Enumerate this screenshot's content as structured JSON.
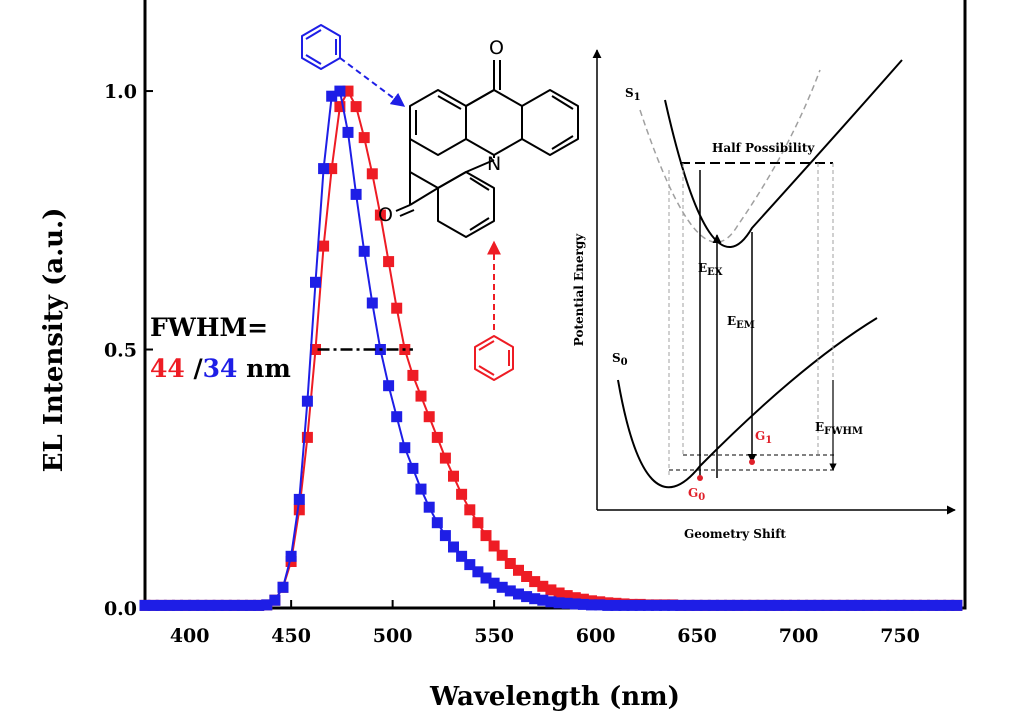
{
  "chart_data": {
    "type": "scatter",
    "title": "",
    "xlabel": "Wavelength (nm)",
    "ylabel": "EL Intensity (a.u.)",
    "xlim": [
      378,
      782
    ],
    "ylim": [
      0,
      1.18
    ],
    "xticks": [
      400,
      450,
      500,
      550,
      600,
      650,
      700,
      750
    ],
    "yticks": [
      0.0,
      0.5,
      1.0
    ],
    "xtick_labels": [
      "400",
      "450",
      "500",
      "550",
      "600",
      "650",
      "700",
      "750"
    ],
    "ytick_labels": [
      "0.0",
      "0.5",
      "1.0"
    ],
    "grid": false,
    "series": [
      {
        "color": "#ee1c24",
        "marker": "square",
        "x": [
          378,
          382,
          386,
          390,
          394,
          398,
          402,
          406,
          410,
          414,
          418,
          422,
          426,
          430,
          434,
          438,
          442,
          446,
          450,
          454,
          458,
          462,
          466,
          470,
          474,
          478,
          482,
          486,
          490,
          494,
          498,
          502,
          506,
          510,
          514,
          518,
          522,
          526,
          530,
          534,
          538,
          542,
          546,
          550,
          554,
          558,
          562,
          566,
          570,
          574,
          578,
          582,
          586,
          590,
          594,
          598,
          602,
          606,
          610,
          614,
          618,
          622,
          626,
          630,
          634,
          638,
          642,
          646,
          650,
          654,
          658,
          662,
          666,
          670,
          674,
          678,
          682,
          686,
          690,
          694,
          698,
          702,
          706,
          710,
          714,
          718,
          722,
          726,
          730,
          734,
          738,
          742,
          746,
          750,
          754,
          758,
          762,
          766,
          770,
          774,
          778
        ],
        "y": [
          0.005,
          0.005,
          0.005,
          0.005,
          0.005,
          0.005,
          0.005,
          0.005,
          0.005,
          0.005,
          0.005,
          0.005,
          0.005,
          0.005,
          0.005,
          0.006,
          0.015,
          0.04,
          0.09,
          0.19,
          0.33,
          0.5,
          0.7,
          0.85,
          0.97,
          1.0,
          0.97,
          0.91,
          0.84,
          0.76,
          0.67,
          0.58,
          0.5,
          0.45,
          0.41,
          0.37,
          0.33,
          0.29,
          0.255,
          0.22,
          0.19,
          0.165,
          0.14,
          0.12,
          0.102,
          0.086,
          0.073,
          0.061,
          0.051,
          0.042,
          0.035,
          0.029,
          0.024,
          0.02,
          0.017,
          0.014,
          0.012,
          0.01,
          0.009,
          0.008,
          0.007,
          0.007,
          0.006,
          0.006,
          0.006,
          0.006,
          0.005,
          0.005,
          0.005,
          0.005,
          0.005,
          0.005,
          0.005,
          0.005,
          0.005,
          0.005,
          0.005,
          0.005,
          0.005,
          0.005,
          0.005,
          0.005,
          0.005,
          0.005,
          0.005,
          0.005,
          0.005,
          0.005,
          0.005,
          0.005,
          0.005,
          0.005,
          0.005,
          0.005,
          0.005,
          0.005,
          0.005,
          0.005,
          0.005,
          0.005,
          0.005
        ]
      },
      {
        "color": "#1e1ee6",
        "marker": "square",
        "x": [
          378,
          382,
          386,
          390,
          394,
          398,
          402,
          406,
          410,
          414,
          418,
          422,
          426,
          430,
          434,
          438,
          442,
          446,
          450,
          454,
          458,
          462,
          466,
          470,
          474,
          478,
          482,
          486,
          490,
          494,
          498,
          502,
          506,
          510,
          514,
          518,
          522,
          526,
          530,
          534,
          538,
          542,
          546,
          550,
          554,
          558,
          562,
          566,
          570,
          574,
          578,
          582,
          586,
          590,
          594,
          598,
          602,
          606,
          610,
          614,
          618,
          622,
          626,
          630,
          634,
          638,
          642,
          646,
          650,
          654,
          658,
          662,
          666,
          670,
          674,
          678,
          682,
          686,
          690,
          694,
          698,
          702,
          706,
          710,
          714,
          718,
          722,
          726,
          730,
          734,
          738,
          742,
          746,
          750,
          754,
          758,
          762,
          766,
          770,
          774,
          778
        ],
        "y": [
          0.005,
          0.005,
          0.005,
          0.005,
          0.005,
          0.005,
          0.005,
          0.005,
          0.005,
          0.005,
          0.005,
          0.005,
          0.005,
          0.005,
          0.005,
          0.006,
          0.015,
          0.04,
          0.1,
          0.21,
          0.4,
          0.63,
          0.85,
          0.99,
          1.0,
          0.92,
          0.8,
          0.69,
          0.59,
          0.5,
          0.43,
          0.37,
          0.31,
          0.27,
          0.23,
          0.195,
          0.165,
          0.14,
          0.118,
          0.1,
          0.084,
          0.07,
          0.058,
          0.048,
          0.04,
          0.033,
          0.027,
          0.022,
          0.018,
          0.015,
          0.012,
          0.01,
          0.009,
          0.008,
          0.007,
          0.006,
          0.006,
          0.005,
          0.005,
          0.005,
          0.005,
          0.005,
          0.005,
          0.005,
          0.005,
          0.005,
          0.005,
          0.005,
          0.005,
          0.005,
          0.005,
          0.005,
          0.005,
          0.005,
          0.005,
          0.005,
          0.005,
          0.005,
          0.005,
          0.005,
          0.005,
          0.005,
          0.005,
          0.005,
          0.005,
          0.005,
          0.005,
          0.005,
          0.005,
          0.005,
          0.005,
          0.005,
          0.005,
          0.005,
          0.005,
          0.005,
          0.005,
          0.005,
          0.005,
          0.005,
          0.005
        ]
      }
    ],
    "fwhm_line": {
      "x": [
        463,
        510
      ],
      "y": 0.5
    },
    "annotations": {
      "fwhm_label": "FWHM=",
      "fwhm_red": "44",
      "fwhm_slash": " /",
      "fwhm_blue": "34",
      "fwhm_unit": " nm"
    }
  },
  "molecule": {
    "atom_o_top": "O",
    "atom_o_left": "O",
    "atom_n": "N"
  },
  "inset": {
    "ylabel": "Potential Energy",
    "xlabel": "Geometry Shift",
    "half_possibility": "Half Possibility",
    "s1": "S",
    "s1_sub": "1",
    "s0": "S",
    "s0_sub": "0",
    "eex": "E",
    "eex_sub": "EX",
    "eem": "E",
    "eem_sub": "EM",
    "efwhm": "E",
    "efwhm_sub": "FWHM",
    "g0": "G",
    "g0_sub": "0",
    "g1": "G",
    "g1_sub": "1",
    "colors": {
      "highlight": "#e0202a",
      "dashed": "#a0a0a0"
    }
  }
}
